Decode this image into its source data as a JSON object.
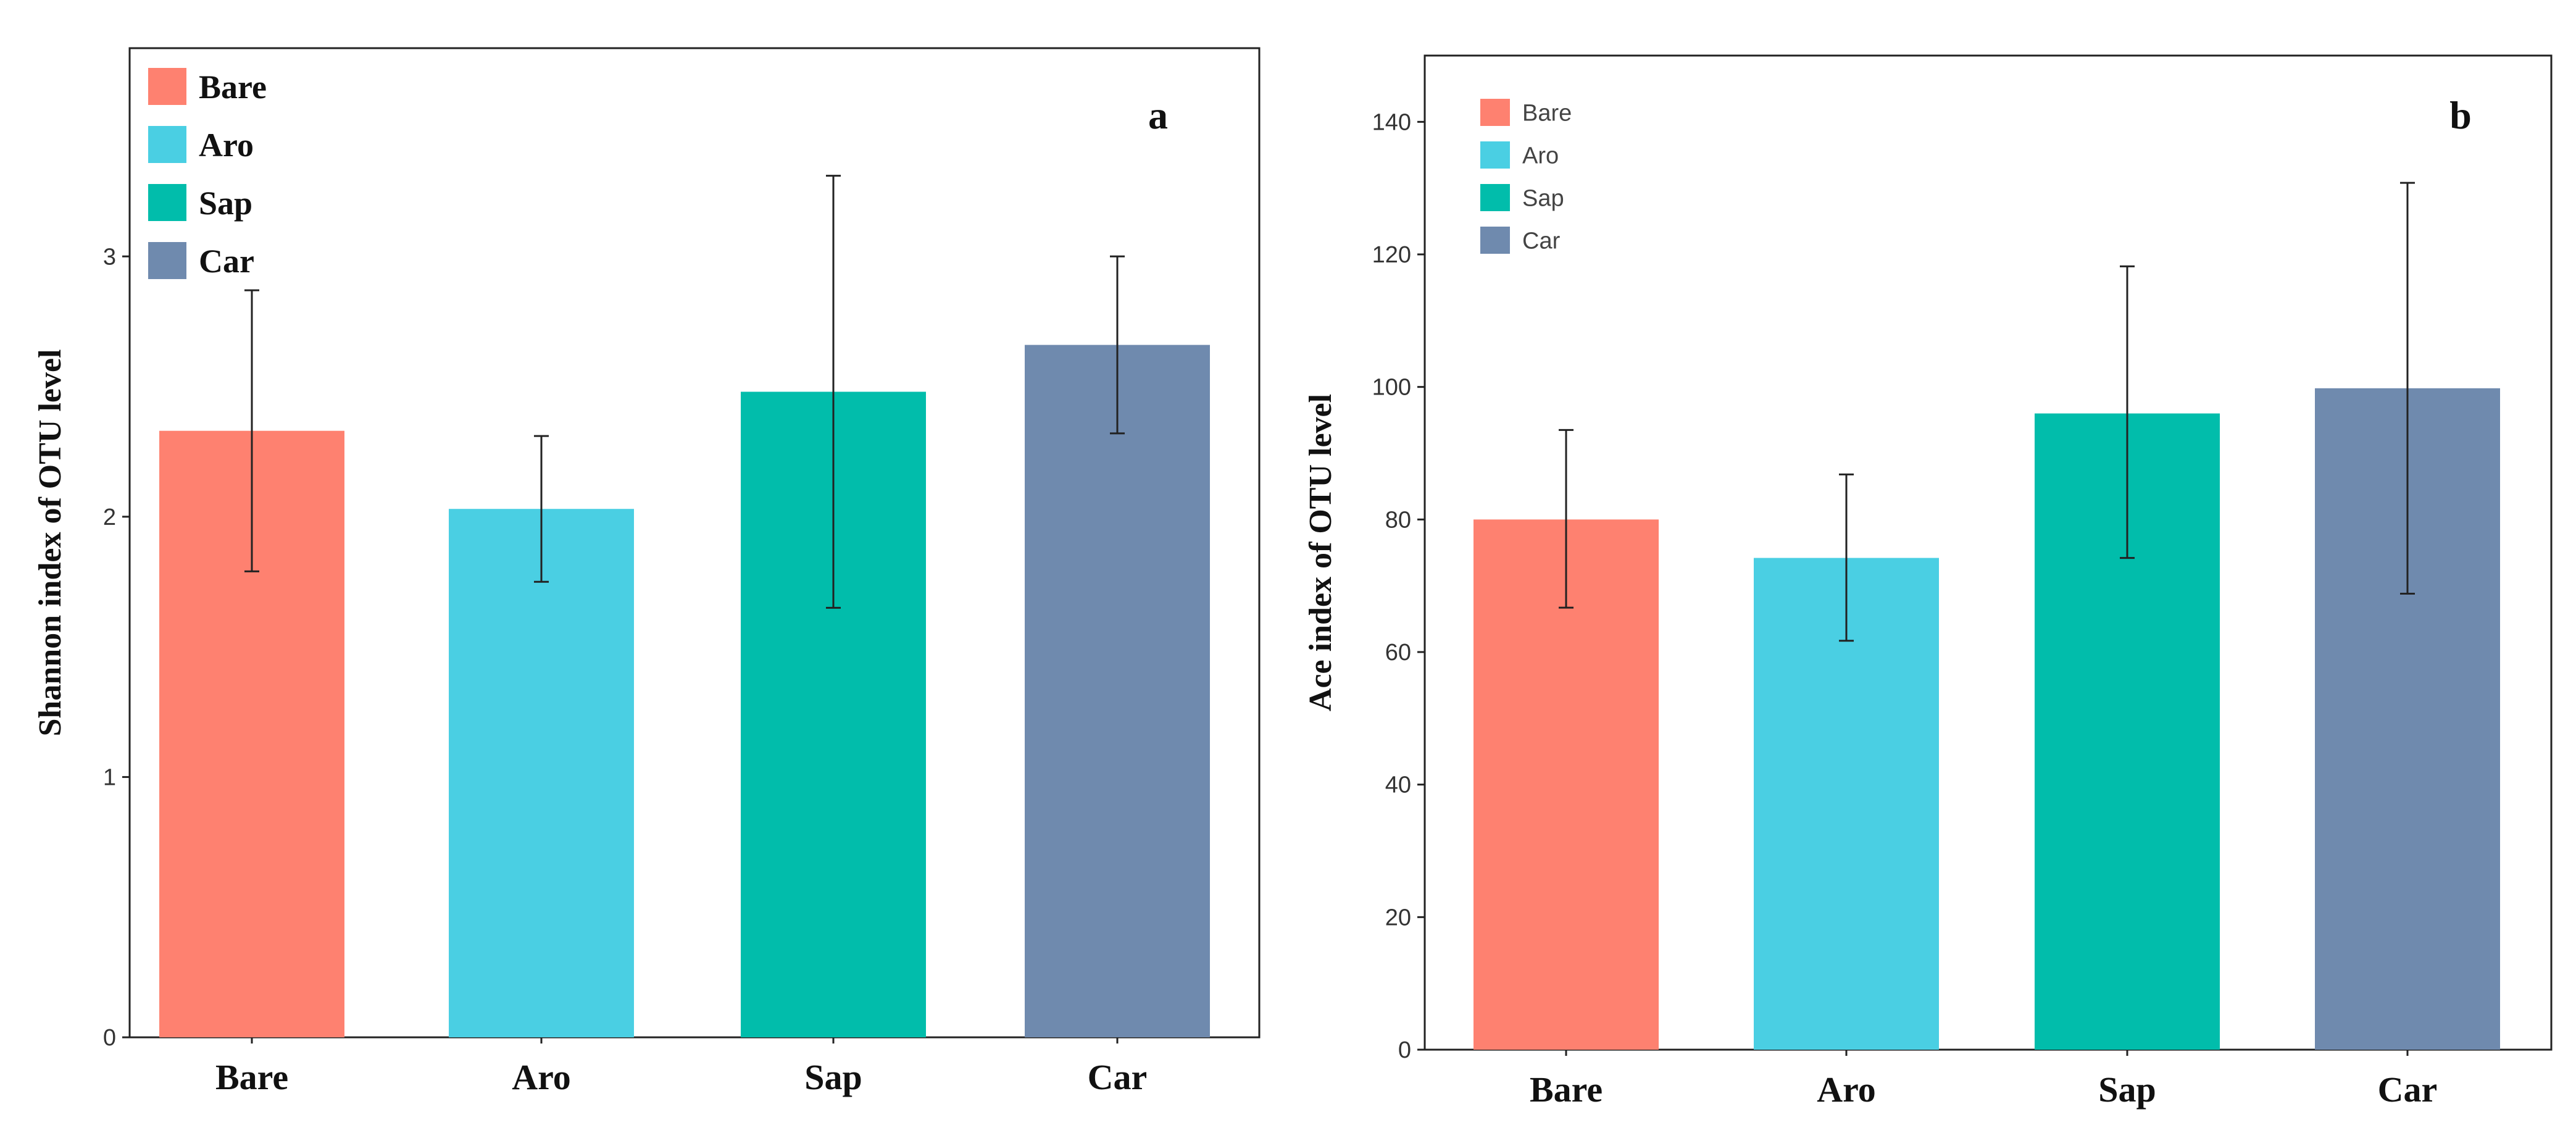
{
  "chart_data": [
    {
      "type": "bar",
      "panel_letter": "a",
      "categories": [
        "Bare",
        "Aro",
        "Sap",
        "Car"
      ],
      "values": [
        2.33,
        2.03,
        2.48,
        2.66
      ],
      "error_low": [
        1.79,
        1.75,
        1.65,
        2.32
      ],
      "error_high": [
        2.87,
        2.31,
        3.31,
        3.0
      ],
      "colors": [
        "#fe8170",
        "#4acfe3",
        "#01bdab",
        "#6f8aae"
      ],
      "xlabel": "",
      "ylabel": "Shannon index of OTU level",
      "ylim": [
        0,
        3.8
      ],
      "yticks": [
        0,
        1,
        2,
        3
      ],
      "ytick_labels": [
        "0",
        "1",
        "2",
        "3"
      ],
      "legend": [
        "Bare",
        "Aro",
        "Sap",
        "Car"
      ],
      "legend_position": "top-left",
      "grid": false
    },
    {
      "type": "bar",
      "panel_letter": "b",
      "categories": [
        "Bare",
        "Aro",
        "Sap",
        "Car"
      ],
      "values": [
        80,
        74.2,
        96,
        99.8
      ],
      "error_low": [
        66.7,
        61.7,
        74.2,
        68.8
      ],
      "error_high": [
        93.5,
        86.8,
        118.2,
        130.8
      ],
      "colors": [
        "#fe8170",
        "#4acfe3",
        "#01bdab",
        "#6f8aae"
      ],
      "xlabel": "",
      "ylabel": "Ace index of OTU level",
      "ylim": [
        0,
        150
      ],
      "yticks": [
        0,
        20,
        40,
        60,
        80,
        100,
        120,
        140
      ],
      "ytick_labels": [
        "0",
        "20",
        "40",
        "60",
        "80",
        "100",
        "120",
        "140"
      ],
      "legend": [
        "Bare",
        "Aro",
        "Sap",
        "Car"
      ],
      "legend_position": "top-left",
      "grid": false
    }
  ]
}
